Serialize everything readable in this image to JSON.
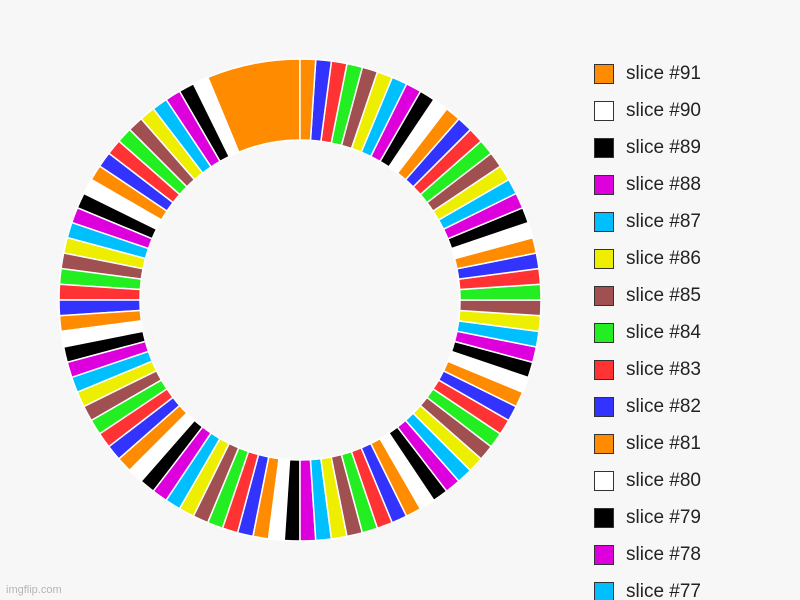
{
  "chart_data": {
    "type": "pie",
    "variant": "donut",
    "legend_position": "right",
    "start_slice": 91,
    "end_slice": 1,
    "slice_values": {
      "91": 6,
      "default": 1
    },
    "palette": [
      "#ff8c00",
      "#ffffff",
      "#000000",
      "#dd00dd",
      "#00bfff",
      "#eeee00",
      "#a05050",
      "#22ee22",
      "#ff3333",
      "#3333ff"
    ],
    "legend": [
      {
        "label": "slice #91",
        "color": "#ff8c00"
      },
      {
        "label": "slice #90",
        "color": "#ffffff"
      },
      {
        "label": "slice #89",
        "color": "#000000"
      },
      {
        "label": "slice #88",
        "color": "#dd00dd"
      },
      {
        "label": "slice #87",
        "color": "#00bfff"
      },
      {
        "label": "slice #86",
        "color": "#eeee00"
      },
      {
        "label": "slice #85",
        "color": "#a05050"
      },
      {
        "label": "slice #84",
        "color": "#22ee22"
      },
      {
        "label": "slice #83",
        "color": "#ff3333"
      },
      {
        "label": "slice #82",
        "color": "#3333ff"
      },
      {
        "label": "slice #81",
        "color": "#ff8c00"
      },
      {
        "label": "slice #80",
        "color": "#ffffff"
      },
      {
        "label": "slice #79",
        "color": "#000000"
      },
      {
        "label": "slice #78",
        "color": "#dd00dd"
      },
      {
        "label": "slice #77",
        "color": "#00bfff"
      }
    ]
  },
  "watermark": "imgflip.com"
}
